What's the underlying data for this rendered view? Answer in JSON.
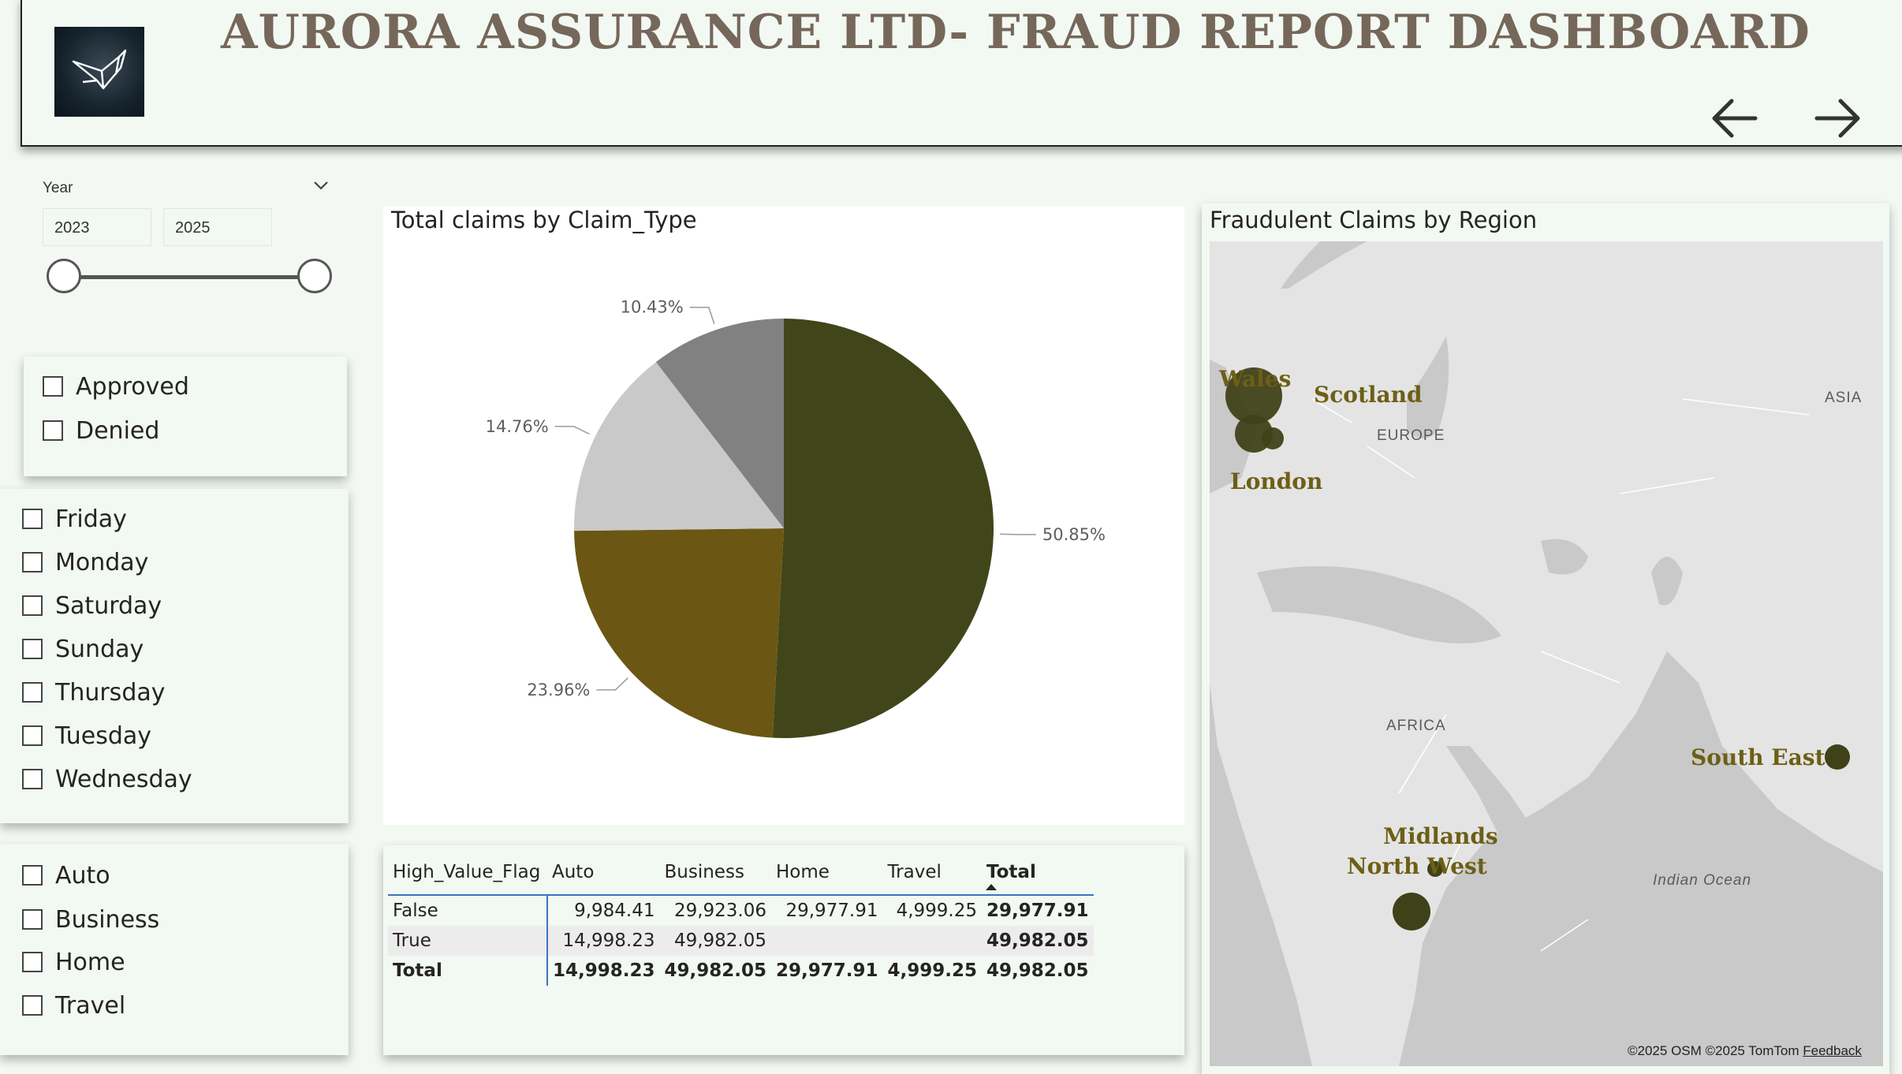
{
  "header": {
    "title": "AURORA ASSURANCE LTD- FRAUD REPORT DASHBOARD",
    "logo_icon": "origami-bird-icon",
    "back_icon": "arrow-left-icon",
    "forward_icon": "arrow-right-icon"
  },
  "year_slicer": {
    "label": "Year",
    "start": "2023",
    "end": "2025",
    "range_fraction": [
      0,
      1
    ],
    "chevron_icon": "chevron-down-icon"
  },
  "status_slicer": {
    "items": [
      "Approved",
      "Denied"
    ]
  },
  "day_slicer": {
    "items": [
      "Friday",
      "Monday",
      "Saturday",
      "Sunday",
      "Thursday",
      "Tuesday",
      "Wednesday"
    ]
  },
  "claim_type_slicer": {
    "items": [
      "Auto",
      "Business",
      "Home",
      "Travel"
    ]
  },
  "pie": {
    "title": "Total claims by Claim_Type",
    "colors": [
      "#40461a",
      "#6b5713",
      "#c9c9c9",
      "#818181"
    ],
    "chart_data": {
      "type": "pie",
      "values": [
        50.85,
        23.96,
        14.76,
        10.43
      ],
      "labels": [
        "50.85%",
        "23.96%",
        "14.76%",
        "10.43%"
      ]
    }
  },
  "matrix": {
    "columns": [
      "High_Value_Flag",
      "Auto",
      "Business",
      "Home",
      "Travel",
      "Total"
    ],
    "sort_icon": "sort-ascending-icon",
    "rows": [
      [
        "False",
        "9,984.41",
        "29,923.06",
        "29,977.91",
        "4,999.25",
        "29,977.91"
      ],
      [
        "True",
        "14,998.23",
        "49,982.05",
        "",
        "",
        "49,982.05"
      ],
      [
        "Total",
        "14,998.23",
        "49,982.05",
        "29,977.91",
        "4,999.25",
        "49,982.05"
      ]
    ]
  },
  "map": {
    "title": "Fraudulent Claims by Region",
    "bubble_color": "#3f4218",
    "label_color": "#6d5f15",
    "regions": [
      "Wales",
      "Scotland",
      "London",
      "South East",
      "Midlands",
      "North West"
    ],
    "geo_labels": [
      "EUROPE",
      "ASIA",
      "AFRICA",
      "Indian Ocean"
    ],
    "credit": "©2025 OSM  ©2025 TomTom",
    "feedback": "Feedback"
  }
}
